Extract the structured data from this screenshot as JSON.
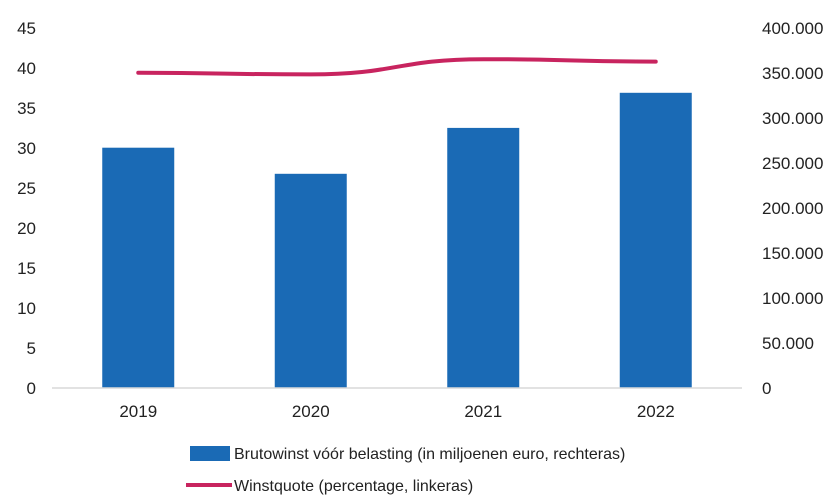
{
  "chart_data": {
    "type": "bar",
    "categories": [
      "2019",
      "2020",
      "2021",
      "2022"
    ],
    "series": [
      {
        "name": "Brutowinst vóór belasting (in miljoenen euro, rechteras)",
        "chart_type": "bar",
        "axis": "right",
        "color": "#1a6ab5",
        "values": [
          267000,
          238000,
          289000,
          328000
        ]
      },
      {
        "name": "Winstquote (percentage, linkeras)",
        "chart_type": "line",
        "axis": "left",
        "color": "#c8245f",
        "values": [
          39.4,
          39.2,
          41.1,
          40.8
        ]
      }
    ],
    "y_left": {
      "range": [
        0,
        45
      ],
      "ticks": [
        "0",
        "5",
        "10",
        "15",
        "20",
        "25",
        "30",
        "35",
        "40",
        "45"
      ]
    },
    "y_right": {
      "range": [
        0,
        400000
      ],
      "ticks": [
        "0",
        "50.000",
        "100.000",
        "150.000",
        "200.000",
        "250.000",
        "300.000",
        "350.000",
        "400.000"
      ]
    },
    "grid": false,
    "legend_position": "bottom"
  }
}
